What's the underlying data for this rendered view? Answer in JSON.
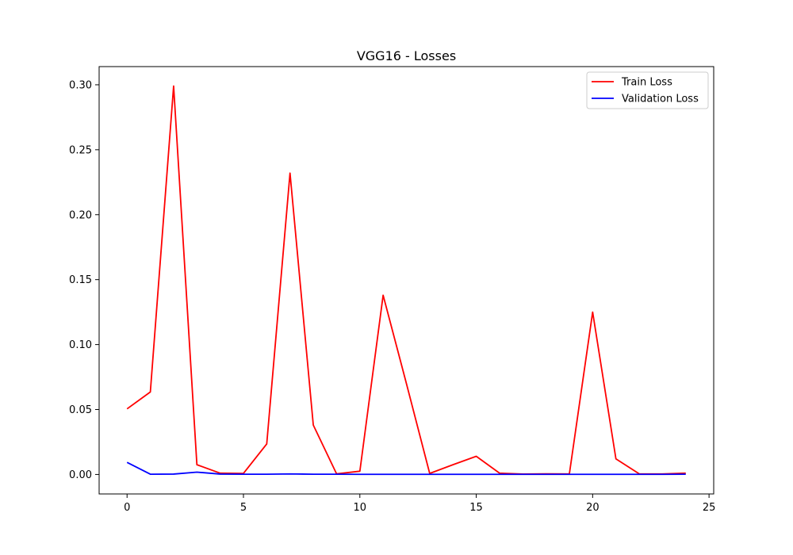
{
  "chart_data": {
    "type": "line",
    "title": "VGG16 - Losses",
    "xlabel": "",
    "ylabel": "",
    "xlim": [
      -1.2,
      25.2
    ],
    "ylim": [
      -0.015,
      0.314
    ],
    "xticks": [
      0,
      5,
      10,
      15,
      20,
      25
    ],
    "xtick_labels": [
      "0",
      "5",
      "10",
      "15",
      "20",
      "25"
    ],
    "yticks": [
      0.0,
      0.05,
      0.1,
      0.15,
      0.2,
      0.25,
      0.3
    ],
    "ytick_labels": [
      "0.00",
      "0.05",
      "0.10",
      "0.15",
      "0.20",
      "0.25",
      "0.30"
    ],
    "grid": false,
    "legend_position": "top-right",
    "x": [
      0,
      1,
      2,
      3,
      4,
      5,
      6,
      7,
      8,
      9,
      10,
      11,
      12,
      13,
      14,
      15,
      16,
      17,
      18,
      19,
      20,
      21,
      22,
      23,
      24
    ],
    "series": [
      {
        "name": "Train Loss",
        "color": "#ff0000",
        "values": [
          0.0505,
          0.0635,
          0.299,
          0.0075,
          0.001,
          0.0008,
          0.0235,
          0.232,
          0.038,
          0.0005,
          0.0025,
          0.138,
          0.07,
          0.0008,
          0.0075,
          0.014,
          0.001,
          0.0003,
          0.0005,
          0.0004,
          0.125,
          0.012,
          0.0005,
          0.0004,
          0.001
        ]
      },
      {
        "name": "Validation Loss",
        "color": "#0000ff",
        "values": [
          0.0093,
          0.0002,
          0.0003,
          0.0018,
          0.0003,
          0.0002,
          0.0002,
          0.0004,
          0.0002,
          0.0002,
          0.0001,
          0.0001,
          0.0001,
          0.0001,
          0.0001,
          0.0001,
          0.0001,
          0.0001,
          0.0001,
          0.0001,
          0.0001,
          0.0001,
          0.0001,
          0.0001,
          0.0002
        ]
      }
    ]
  }
}
